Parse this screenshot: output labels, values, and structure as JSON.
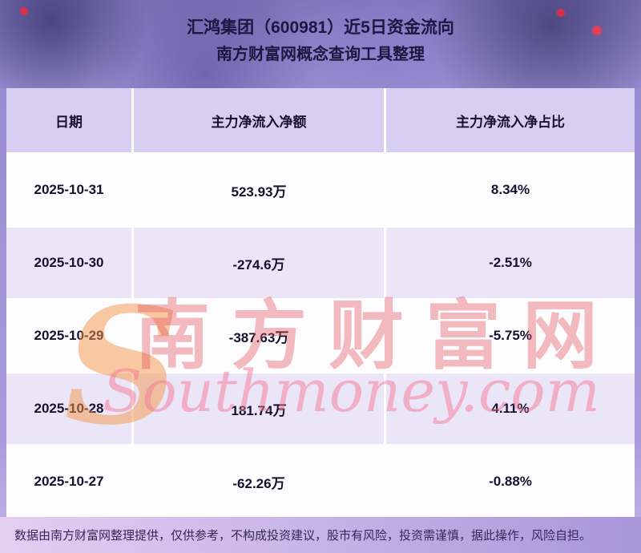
{
  "chart_data": {
    "type": "table",
    "title": "汇鸿集团（600981）近5日资金流向",
    "subtitle": "南方财富网概念查询工具整理",
    "columns": [
      "日期",
      "主力净流入净额",
      "主力净流入净占比"
    ],
    "rows": [
      [
        "2025-10-31",
        "523.93万",
        "8.34%"
      ],
      [
        "2025-10-30",
        "-274.6万",
        "-2.51%"
      ],
      [
        "2025-10-29",
        "-387.63万",
        "-5.75%"
      ],
      [
        "2025-10-28",
        "181.74万",
        "4.11%"
      ],
      [
        "2025-10-27",
        "-62.26万",
        "-0.88%"
      ]
    ]
  },
  "watermark": {
    "s": "S",
    "cn": "南方财富网",
    "en": "Southmoney.com"
  },
  "footer": {
    "disclaimer": "数据由南方财富网整理提供，仅供参考，不构成投资建议，股市有风险，投资需谨慎，据此操作，风险自担。"
  },
  "colors": {
    "header_bg": "#d7cff2",
    "row_alt_bg": "#ebe6f7",
    "title_text": "#1f1642",
    "watermark_red": "#e2565c",
    "watermark_orange": "#f39448"
  }
}
